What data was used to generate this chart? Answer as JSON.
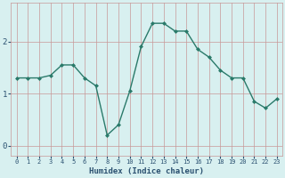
{
  "x": [
    0,
    1,
    2,
    3,
    4,
    5,
    6,
    7,
    8,
    9,
    10,
    11,
    12,
    13,
    14,
    15,
    16,
    17,
    18,
    19,
    20,
    21,
    22,
    23
  ],
  "y": [
    1.3,
    1.3,
    1.3,
    1.35,
    1.55,
    1.55,
    1.3,
    1.15,
    0.2,
    0.4,
    1.05,
    1.9,
    2.35,
    2.35,
    2.2,
    2.2,
    1.85,
    1.7,
    1.45,
    1.3,
    1.3,
    0.85,
    0.72,
    0.9
  ],
  "line_color": "#2a7a6a",
  "marker": "D",
  "markersize": 2.0,
  "linewidth": 1.0,
  "bg_color": "#d8f0f0",
  "grid_color_v": "#c89898",
  "grid_color_h": "#c89898",
  "xlabel": "Humidex (Indice chaleur)",
  "ylim": [
    -0.2,
    2.75
  ],
  "yticks": [
    0,
    1,
    2
  ],
  "xticks": [
    0,
    1,
    2,
    3,
    4,
    5,
    6,
    7,
    8,
    9,
    10,
    11,
    12,
    13,
    14,
    15,
    16,
    17,
    18,
    19,
    20,
    21,
    22,
    23
  ],
  "xlabel_fontsize": 6.5,
  "xtick_fontsize": 5.0,
  "ytick_fontsize": 6.5,
  "tick_color": "#2a5070"
}
